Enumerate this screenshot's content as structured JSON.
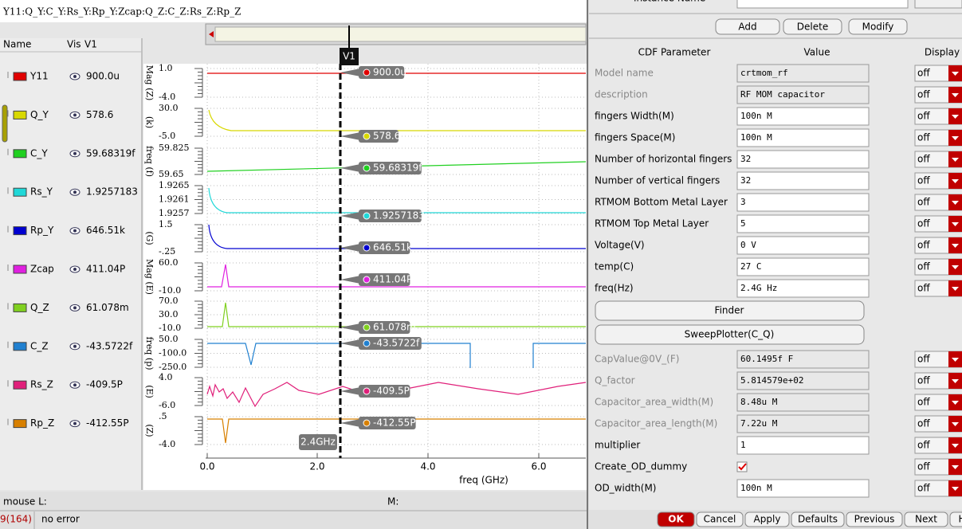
{
  "window_title": "Y11:Q_Y:C_Y:Rs_Y:Rp_Y:Zcap:Q_Z:C_Z:Rs_Z:Rp_Z",
  "legend_header": {
    "name": "Name",
    "vis": "Vis",
    "cursor": "V1"
  },
  "traces": [
    {
      "name": "Y11",
      "color": "#e00000",
      "value": "900.0u",
      "axis_labels": [
        "1.0",
        "-4.0"
      ],
      "axis_title": "Mag (Z)"
    },
    {
      "name": "Q_Y",
      "color": "#d8d800",
      "value": "578.6",
      "axis_labels": [
        "30.0",
        "-5.0"
      ],
      "axis_title": "(k)"
    },
    {
      "name": "C_Y",
      "color": "#20d020",
      "value": "59.68319f",
      "axis_labels": [
        "59.825",
        "59.65"
      ],
      "axis_title": "freq (f)"
    },
    {
      "name": "Rs_Y",
      "color": "#20d8d8",
      "value": "1.9257183",
      "axis_labels": [
        "1.9265",
        "1.9261",
        "1.9257"
      ]
    },
    {
      "name": "Rp_Y",
      "color": "#0000d0",
      "value": "646.51k",
      "axis_labels": [
        "1.5",
        "-.25"
      ],
      "axis_title": "(G)"
    },
    {
      "name": "Zcap",
      "color": "#e020e0",
      "value": "411.04P",
      "axis_labels": [
        "60.0",
        "-10.0"
      ],
      "axis_title": "Mag (E)"
    },
    {
      "name": "Q_Z",
      "color": "#80d020",
      "value": "61.078m",
      "axis_labels": [
        "70.0",
        "30.0",
        "-10.0"
      ]
    },
    {
      "name": "C_Z",
      "color": "#2080d0",
      "value": "-43.5722f",
      "axis_labels": [
        "50.0",
        "-100.0",
        "-250.0"
      ],
      "axis_title": "freq (p)"
    },
    {
      "name": "Rs_Z",
      "color": "#e0207a",
      "value": "-409.5P",
      "axis_labels": [
        "4.0",
        "-6.0"
      ],
      "axis_title": "(E)"
    },
    {
      "name": "Rp_Z",
      "color": "#d88000",
      "value": "-412.55P",
      "axis_labels": [
        ".5",
        "-4.0"
      ],
      "axis_title": "(Z)"
    }
  ],
  "x_axis": {
    "ticks": [
      "0.0",
      "2.0",
      "4.0",
      "6.0"
    ],
    "title": "freq (GHz)"
  },
  "cursor": {
    "name": "V1",
    "position": "2.4GHz"
  },
  "status": {
    "mouse": "mouse L:",
    "middle": "M:",
    "line": "9(164)",
    "message": "no error"
  },
  "form": {
    "instance_label": "Instance Name",
    "actions": [
      "Add",
      "Delete",
      "Modify"
    ],
    "headers": [
      "CDF Parameter",
      "Value",
      "Display"
    ],
    "params": [
      {
        "name": "Model name",
        "value": "crtmom_rf",
        "display": "off",
        "disabled": true
      },
      {
        "name": "description",
        "value": "RF MOM capacitor",
        "display": "off",
        "disabled": true
      },
      {
        "name": "fingers Width(M)",
        "value": "100n M",
        "display": "off"
      },
      {
        "name": "fingers Space(M)",
        "value": "100n M",
        "display": "off"
      },
      {
        "name": "Number of horizontal fingers",
        "value": "32",
        "display": "off"
      },
      {
        "name": "Number of vertical fingers",
        "value": "32",
        "display": "off"
      },
      {
        "name": "RTMOM Bottom Metal Layer",
        "value": "3",
        "display": "off"
      },
      {
        "name": "RTMOM Top Metal Layer",
        "value": "5",
        "display": "off"
      },
      {
        "name": "Voltage(V)",
        "value": "0 V",
        "display": "off"
      },
      {
        "name": "temp(C)",
        "value": "27 C",
        "display": "off"
      },
      {
        "name": "freq(Hz)",
        "value": "2.4G Hz",
        "display": "off"
      }
    ],
    "tools": [
      "Finder",
      "SweepPlotter(C_Q)"
    ],
    "params2": [
      {
        "name": "CapValue@0V_(F)",
        "value": "60.1495f F",
        "display": "off",
        "disabled": true
      },
      {
        "name": "Q_factor",
        "value": "5.814579e+02",
        "display": "off",
        "disabled": true
      },
      {
        "name": "Capacitor_area_width(M)",
        "value": "8.48u M",
        "display": "off",
        "disabled": true
      },
      {
        "name": "Capacitor_area_length(M)",
        "value": "7.22u M",
        "display": "off",
        "disabled": true
      },
      {
        "name": "multiplier",
        "value": "1",
        "display": "off"
      },
      {
        "name": "Create_OD_dummy",
        "checked": true,
        "display": "off"
      },
      {
        "name": "OD_width(M)",
        "value": "100n M",
        "display": "off"
      }
    ],
    "buttons": [
      "OK",
      "Cancel",
      "Apply",
      "Defaults",
      "Previous",
      "Next",
      "H"
    ]
  }
}
